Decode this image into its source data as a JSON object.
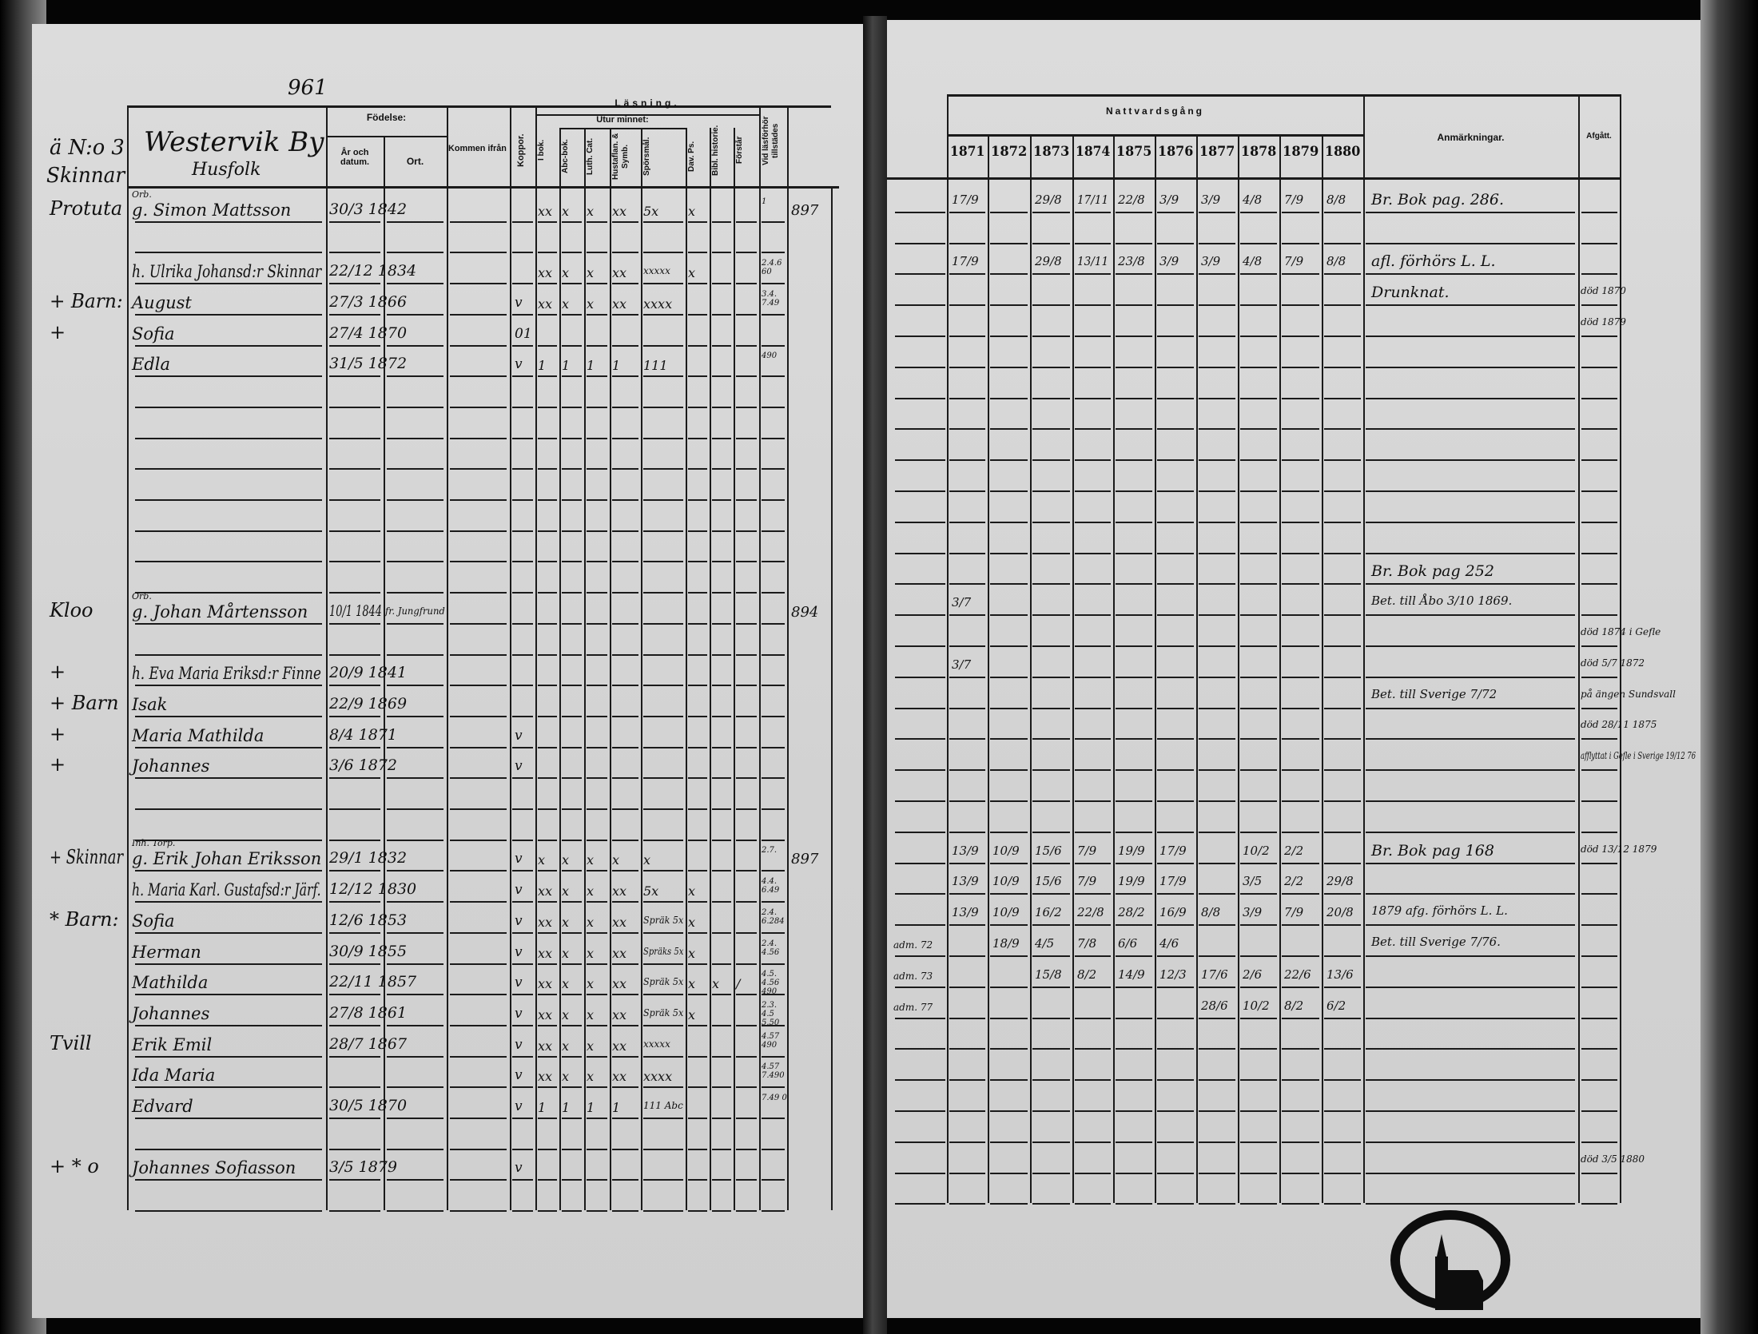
{
  "page_number": "961",
  "left_page": {
    "margin_header": [
      "ä N:o 3",
      "Skinnar"
    ],
    "village": "Westervik By",
    "household_label": "Husfolk",
    "headers": {
      "fodelse": "Födelse:",
      "ar_datum": "År och datum.",
      "ort": "Ort.",
      "kommen": "Kommen ifrån",
      "koppor": "Koppor.",
      "lasning": "Läsning.",
      "utur_minnet": "Utur minnet:",
      "i_bok": "I bok.",
      "abc": "Abc-bok.",
      "luth": "Luth. Cat.",
      "hustaflan": "Hustaflan. & Symb.",
      "sporsmal": "Spörsmål.",
      "dav": "Dav. Ps.",
      "bibl": "Bibl. historie.",
      "forstar": "Förstår",
      "vid": "Vid läsförhör tillstädes"
    },
    "rows": [
      {
        "margin": "Protuta",
        "title": "Orb.",
        "name": "g. Simon Mattsson",
        "birth": "30/3 1842",
        "from": "",
        "koppor": "",
        "reading": [
          "xx",
          "x",
          "x",
          "xx",
          "5x",
          "x",
          "",
          ""
        ],
        "vid": "1",
        "extra": "897"
      },
      {},
      {
        "name": "h. Ulrika Johansd:r Skinnar",
        "birth": "22/12 1834",
        "reading": [
          "xx",
          "x",
          "x",
          "xx",
          "xxxxx",
          "x",
          "",
          ""
        ],
        "vid": "2.4.6 60"
      },
      {
        "margin": "+ Barn:",
        "name": "August",
        "birth": "27/3 1866",
        "koppor": "v",
        "reading": [
          "xx",
          "x",
          "x",
          "xx",
          "xxxx",
          "",
          "",
          ""
        ],
        "vid": "3.4. 7.49"
      },
      {
        "margin": "+",
        "name": "Sofia",
        "birth": "27/4 1870",
        "koppor": "01"
      },
      {
        "name": "Edla",
        "birth": "31/5 1872",
        "koppor": "v",
        "reading": [
          "1",
          "1",
          "1",
          "1",
          "111",
          "",
          "",
          ""
        ],
        "vid": "490"
      },
      {},
      {},
      {},
      {},
      {},
      {},
      {},
      {
        "margin": "Kloo",
        "title": "Orb.",
        "name": "g. Johan Mårtensson",
        "birth": "10/1 1844",
        "from": "fr. Jungfrund",
        "extra": "894"
      },
      {},
      {
        "margin": "+",
        "name": "h. Eva Maria Eriksd:r Finne",
        "birth": "20/9 1841"
      },
      {
        "margin": "+ Barn",
        "name": "Isak",
        "birth": "22/9 1869"
      },
      {
        "margin": "+",
        "name": "Maria Mathilda",
        "birth": "8/4 1871",
        "koppor": "v"
      },
      {
        "margin": "+",
        "name": "Johannes",
        "birth": "3/6 1872",
        "koppor": "v"
      },
      {},
      {},
      {
        "margin": "+ Skinnar",
        "title": "Inh. Torp.",
        "name": "g. Erik Johan Eriksson",
        "birth": "29/1 1832",
        "koppor": "v",
        "reading": [
          "x",
          "x",
          "x",
          "x",
          "x",
          "",
          "",
          ""
        ],
        "vid": "2.7.",
        "extra": "897"
      },
      {
        "name": "h. Maria Karl. Gustafsd:r Järf.",
        "birth": "12/12 1830",
        "koppor": "v",
        "reading": [
          "xx",
          "x",
          "x",
          "xx",
          "5x",
          "x",
          "",
          ""
        ],
        "vid": "4.4. 6.49"
      },
      {
        "margin": "* Barn:",
        "name": "Sofia",
        "birth": "12/6 1853",
        "koppor": "v",
        "reading": [
          "xx",
          "x",
          "x",
          "xx",
          "Spräk 5x",
          "x",
          "",
          ""
        ],
        "vid": "2.4. 6.284"
      },
      {
        "name": "Herman",
        "birth": "30/9 1855",
        "koppor": "v",
        "reading": [
          "xx",
          "x",
          "x",
          "xx",
          "Spräks 5x",
          "x",
          "",
          ""
        ],
        "vid": "2.4. 4.56"
      },
      {
        "name": "Mathilda",
        "birth": "22/11 1857",
        "koppor": "v",
        "reading": [
          "xx",
          "x",
          "x",
          "xx",
          "Spräk 5x",
          "x",
          "x",
          "/"
        ],
        "vid": "4.5. 4.56 490"
      },
      {
        "name": "Johannes",
        "birth": "27/8 1861",
        "koppor": "v",
        "reading": [
          "xx",
          "x",
          "x",
          "xx",
          "Spräk 5x",
          "x",
          "",
          ""
        ],
        "vid": "2.3. 4.5 5.50"
      },
      {
        "margin": "Tvill",
        "name": "Erik Emil",
        "birth": "28/7 1867",
        "koppor": "v",
        "reading": [
          "xx",
          "x",
          "x",
          "xx",
          "xxxxx",
          "",
          "",
          ""
        ],
        "vid": "4.57 490"
      },
      {
        "name": "Ida Maria",
        "koppor": "v",
        "reading": [
          "xx",
          "x",
          "x",
          "xx",
          "xxxx",
          "",
          "",
          ""
        ],
        "vid": "4.57 7.490"
      },
      {
        "name": "Edvard",
        "birth": "30/5 1870",
        "koppor": "v",
        "reading": [
          "1",
          "1",
          "1",
          "1",
          "111 Abc",
          "",
          "",
          ""
        ],
        "vid": "7.49 0"
      },
      {},
      {
        "margin": "+ * o",
        "name": "Johannes Sofiasson",
        "birth": "3/5 1879",
        "koppor": "v"
      }
    ]
  },
  "right_page": {
    "title": "Nattvardsgång",
    "years": [
      "1871",
      "1872",
      "1873",
      "1874",
      "1875",
      "1876",
      "1877",
      "1878",
      "1879",
      "1880"
    ],
    "remarks_header": "Anmärkningar.",
    "afgatt_header": "Afgått.",
    "rows": [
      {
        "communion": [
          "17/9",
          "",
          "29/8",
          "17/11",
          "22/8",
          "3/9",
          "3/9",
          "4/8",
          "7/9",
          "8/8"
        ],
        "remark": "Br. Bok pag. 286."
      },
      {},
      {
        "communion": [
          "17/9",
          "",
          "29/8",
          "13/11",
          "23/8",
          "3/9",
          "3/9",
          "4/8",
          "7/9",
          "8/8"
        ],
        "remark": "afl. förhörs L. L."
      },
      {
        "remark": "Drunknat.",
        "afgatt": "död 1870"
      },
      {
        "afgatt": "död 1879"
      },
      {},
      {},
      {},
      {},
      {},
      {},
      {},
      {
        "remark": "Br. Bok pag 252"
      },
      {
        "communion": [
          "3/7",
          "",
          "",
          "",
          "",
          "",
          "",
          "",
          "",
          ""
        ],
        "remark": "Bet. till Åbo 3/10 1869."
      },
      {
        "afgatt": "död 1874 i Gefle"
      },
      {
        "communion": [
          "3/7",
          "",
          "",
          "",
          "",
          "",
          "",
          "",
          "",
          ""
        ],
        "afgatt": "död 5/7 1872"
      },
      {
        "remark": "Bet. till Sverige 7/72",
        "afgatt": "på ängen Sundsvall"
      },
      {
        "afgatt": "död 28/11 1875"
      },
      {
        "afgatt": "afflyttat i Gefle i Sverige 19/12 76"
      },
      {},
      {},
      {
        "communion": [
          "13/9",
          "10/9",
          "15/6",
          "7/9",
          "19/9",
          "17/9",
          "",
          "10/2",
          "2/2",
          ""
        ],
        "remark": "Br. Bok pag 168",
        "afgatt": "död 13/12 1879"
      },
      {
        "communion": [
          "13/9",
          "10/9",
          "15/6",
          "7/9",
          "19/9",
          "17/9",
          "",
          "3/5",
          "2/2",
          "29/8"
        ]
      },
      {
        "communion": [
          "13/9",
          "10/9",
          "16/2",
          "22/8",
          "28/2",
          "16/9",
          "8/8",
          "3/9",
          "7/9",
          "20/8"
        ],
        "remark": "1879 afg. förhörs L. L."
      },
      {
        "pre": "adm. 72",
        "communion": [
          "",
          "18/9",
          "4/5",
          "7/8",
          "6/6",
          "4/6",
          "",
          "",
          "",
          ""
        ],
        "remark": "Bet. till Sverige 7/76."
      },
      {
        "pre": "adm. 73",
        "communion": [
          "",
          "",
          "15/8",
          "8/2",
          "14/9",
          "12/3",
          "17/6",
          "2/6",
          "22/6",
          "13/6"
        ]
      },
      {
        "pre": "adm. 77",
        "communion": [
          "",
          "",
          "",
          "",
          "",
          "",
          "28/6",
          "10/2",
          "8/2",
          "6/2"
        ]
      },
      {},
      {},
      {},
      {},
      {
        "afgatt": "död 3/5 1880"
      }
    ]
  }
}
